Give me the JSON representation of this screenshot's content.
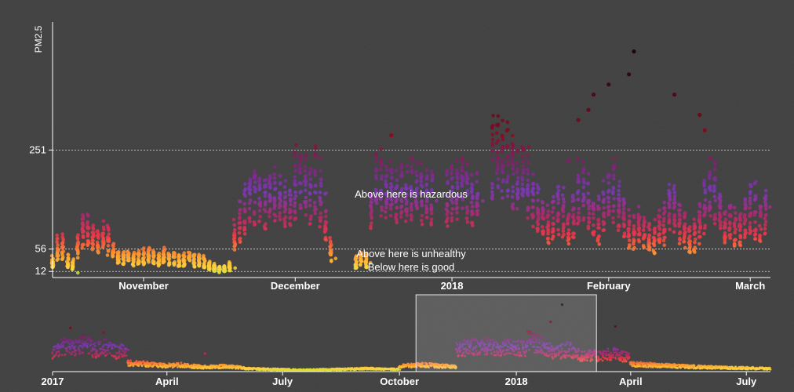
{
  "chart_data": [
    {
      "name": "focus",
      "type": "scatter",
      "ylabel": "PM2.5",
      "x_range": [
        "2017-10-14",
        "2018-03-05"
      ],
      "x_ticks": [
        {
          "label": "November",
          "date": "2017-11-01"
        },
        {
          "label": "December",
          "date": "2017-12-01"
        },
        {
          "label": "2018",
          "date": "2018-01-01"
        },
        {
          "label": "February",
          "date": "2018-02-01"
        },
        {
          "label": "March",
          "date": "2018-03-01"
        }
      ],
      "y_scale": "linear",
      "y_domain": [
        0,
        500
      ],
      "y_ticks": [
        12,
        56,
        251
      ],
      "thresholds": [
        {
          "value": 251,
          "label": "Above here is hazardous"
        },
        {
          "value": 56,
          "label": "Above here is unhealthy"
        },
        {
          "value": 12,
          "label": "Below here is good"
        }
      ],
      "color_scale": [
        "#b0e830",
        "#ffd23f",
        "#ff9a2e",
        "#f03a47",
        "#b0286a",
        "#7a38b8",
        "#8a0a22",
        "#1a0a10"
      ],
      "data_gaps": [
        [
          "2017-12-09",
          "2017-12-13"
        ],
        [
          "2017-12-29",
          "2017-12-31"
        ],
        [
          "2018-01-07",
          "2018-01-09"
        ]
      ],
      "segments": [
        {
          "from": "2017-10-14",
          "to": "2017-10-19",
          "levels": [
            20,
            40,
            75,
            40,
            30,
            15
          ]
        },
        {
          "from": "2017-10-19",
          "to": "2017-10-27",
          "levels": [
            50,
            85,
            95,
            80,
            70,
            95,
            60,
            45
          ]
        },
        {
          "from": "2017-10-27",
          "to": "2017-11-14",
          "levels": [
            40,
            35,
            45,
            30,
            40,
            35,
            50,
            40,
            30,
            45,
            35,
            40,
            30,
            35,
            40,
            30,
            35,
            25
          ]
        },
        {
          "from": "2017-11-14",
          "to": "2017-11-19",
          "levels": [
            25,
            20,
            15,
            18,
            25
          ]
        },
        {
          "from": "2017-11-19",
          "to": "2017-12-01",
          "levels": [
            60,
            95,
            130,
            150,
            160,
            150,
            140,
            170,
            155,
            150,
            120,
            140
          ]
        },
        {
          "from": "2017-12-01",
          "to": "2017-12-09",
          "levels": [
            160,
            200,
            180,
            150,
            200,
            150,
            80,
            40
          ]
        },
        {
          "from": "2017-12-13",
          "to": "2017-12-16",
          "levels": [
            25,
            40,
            30
          ]
        },
        {
          "from": "2017-12-16",
          "to": "2017-12-29",
          "levels": [
            140,
            170,
            190,
            160,
            180,
            150,
            170,
            160,
            190,
            150,
            170,
            160,
            150
          ]
        },
        {
          "from": "2017-12-31",
          "to": "2018-01-07",
          "levels": [
            150,
            160,
            170,
            180,
            160,
            150,
            170
          ]
        },
        {
          "from": "2018-01-09",
          "to": "2018-01-26",
          "levels": [
            220,
            240,
            230,
            250,
            200,
            180,
            210,
            190,
            160,
            130,
            110,
            100,
            120,
            140,
            110,
            90,
            140
          ]
        },
        {
          "from": "2018-01-26",
          "to": "2018-03-05",
          "levels": [
            150,
            180,
            160,
            120,
            100,
            130,
            170,
            190,
            150,
            120,
            100,
            80,
            110,
            90,
            80,
            70,
            100,
            90,
            150,
            130,
            100,
            90,
            70,
            80,
            110,
            140,
            180,
            160,
            120,
            100,
            110,
            90,
            100,
            120,
            150,
            100,
            110,
            130
          ]
        }
      ],
      "spikes": [
        {
          "date": "2017-12-01",
          "value": 220
        },
        {
          "date": "2017-12-20",
          "value": 280
        },
        {
          "date": "2018-01-24",
          "value": 230
        },
        {
          "date": "2018-01-26",
          "value": 310
        },
        {
          "date": "2018-01-28",
          "value": 330
        },
        {
          "date": "2018-01-29",
          "value": 360
        },
        {
          "date": "2018-02-01",
          "value": 380
        },
        {
          "date": "2018-02-05",
          "value": 400
        },
        {
          "date": "2018-02-06",
          "value": 445
        },
        {
          "date": "2018-02-14",
          "value": 360
        },
        {
          "date": "2018-02-19",
          "value": 320
        },
        {
          "date": "2018-02-20",
          "value": 290
        }
      ]
    },
    {
      "name": "context",
      "type": "scatter",
      "x_range": [
        "2017-01-01",
        "2018-07-20"
      ],
      "x_ticks": [
        {
          "label": "2017",
          "date": "2017-01-01"
        },
        {
          "label": "April",
          "date": "2017-04-01"
        },
        {
          "label": "July",
          "date": "2017-07-01"
        },
        {
          "label": "October",
          "date": "2017-10-01"
        },
        {
          "label": "2018",
          "date": "2018-01-01"
        },
        {
          "label": "April",
          "date": "2018-04-01"
        },
        {
          "label": "July",
          "date": "2018-07-01"
        }
      ],
      "y_domain": [
        0,
        500
      ],
      "brush": [
        "2017-10-14",
        "2018-03-05"
      ],
      "segments": [
        {
          "from": "2017-01-01",
          "to": "2017-03-01",
          "levels": [
            120,
            170,
            150,
            190,
            140,
            160,
            130,
            150
          ]
        },
        {
          "from": "2017-03-01",
          "to": "2017-04-15",
          "levels": [
            60,
            50,
            40,
            45
          ]
        },
        {
          "from": "2017-04-15",
          "to": "2017-06-01",
          "levels": [
            40,
            30,
            35,
            25
          ]
        },
        {
          "from": "2017-06-01",
          "to": "2017-10-01",
          "levels": [
            20,
            15,
            10,
            15,
            20,
            15
          ]
        },
        {
          "from": "2017-10-01",
          "to": "2017-11-15",
          "levels": [
            35,
            45,
            40,
            30
          ]
        },
        {
          "from": "2017-11-15",
          "to": "2018-01-10",
          "levels": [
            150,
            170,
            160,
            150
          ]
        },
        {
          "from": "2018-01-10",
          "to": "2018-03-05",
          "levels": [
            220,
            180,
            120,
            150,
            100,
            110
          ]
        },
        {
          "from": "2018-03-05",
          "to": "2018-04-01",
          "levels": [
            100,
            120,
            90
          ]
        },
        {
          "from": "2018-04-01",
          "to": "2018-07-20",
          "levels": [
            50,
            40,
            30,
            25,
            20
          ]
        }
      ],
      "spikes": [
        {
          "date": "2017-01-15",
          "value": 290
        },
        {
          "date": "2017-02-10",
          "value": 260
        },
        {
          "date": "2017-05-01",
          "value": 120
        },
        {
          "date": "2018-01-28",
          "value": 330
        },
        {
          "date": "2018-02-06",
          "value": 445
        },
        {
          "date": "2018-03-20",
          "value": 300
        }
      ]
    }
  ]
}
